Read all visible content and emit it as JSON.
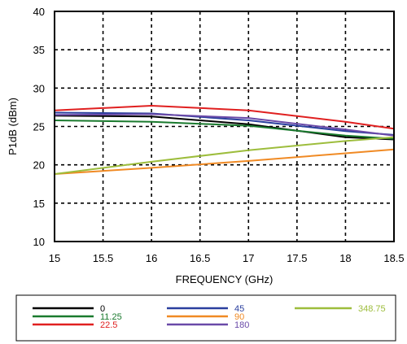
{
  "chart_data": {
    "type": "line",
    "xlabel": "FREQUENCY (GHz)",
    "ylabel": "P1dB  (dBm)",
    "xlim": [
      15,
      18.5
    ],
    "ylim": [
      10,
      40
    ],
    "xticks": [
      15,
      15.5,
      16,
      16.5,
      17,
      17.5,
      18,
      18.5
    ],
    "yticks": [
      10,
      15,
      20,
      25,
      30,
      35,
      40
    ],
    "grid": true,
    "legend_position": "bottom",
    "series": [
      {
        "name": "0",
        "color": "#000000",
        "x": [
          15,
          16,
          17,
          18,
          18.5
        ],
        "y": [
          26.4,
          26.3,
          25.3,
          23.6,
          23.3
        ]
      },
      {
        "name": "11.25",
        "color": "#1a7a2e",
        "x": [
          15,
          16,
          17,
          18,
          18.5
        ],
        "y": [
          25.8,
          25.6,
          25.1,
          23.8,
          23.4
        ]
      },
      {
        "name": "22.5",
        "color": "#e02020",
        "x": [
          15,
          16,
          17,
          18,
          18.5
        ],
        "y": [
          27.1,
          27.7,
          27.1,
          25.6,
          24.7
        ]
      },
      {
        "name": "45",
        "color": "#2a3f9e",
        "x": [
          15,
          16,
          17,
          18,
          18.5
        ],
        "y": [
          26.8,
          26.7,
          25.8,
          24.4,
          23.9
        ]
      },
      {
        "name": "90",
        "color": "#f08a24",
        "x": [
          15,
          16,
          17,
          18,
          18.5
        ],
        "y": [
          18.8,
          19.6,
          20.5,
          21.5,
          22.0
        ]
      },
      {
        "name": "180",
        "color": "#6a4aa8",
        "x": [
          15,
          16,
          17,
          18,
          18.5
        ],
        "y": [
          26.5,
          26.6,
          26.1,
          24.6,
          23.8
        ]
      },
      {
        "name": "348.75",
        "color": "#9dbd3c",
        "x": [
          15,
          16,
          17,
          18,
          18.5
        ],
        "y": [
          18.8,
          20.4,
          21.9,
          23.1,
          23.6
        ]
      }
    ]
  }
}
